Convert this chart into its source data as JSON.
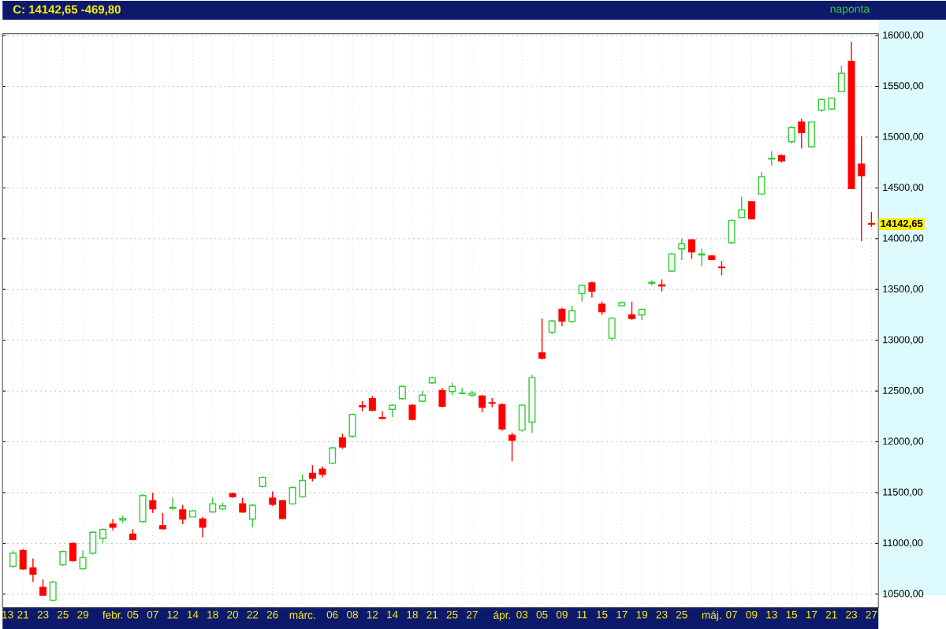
{
  "chart_data": {
    "type": "candlestick",
    "title": "C: 14142,65 -469,80",
    "subtitle": "naponta",
    "categories": [
      "13",
      "21",
      null,
      "23",
      null,
      "25",
      null,
      "29",
      null,
      null,
      "febr.",
      null,
      "05",
      null,
      "07",
      null,
      "12",
      null,
      "14",
      null,
      "18",
      null,
      "20",
      null,
      "22",
      null,
      "26",
      null,
      null,
      "márc.",
      null,
      null,
      "06",
      null,
      "08",
      null,
      "12",
      null,
      "14",
      null,
      "18",
      null,
      "21",
      null,
      "25",
      null,
      "27",
      null,
      null,
      "ápr.",
      null,
      "03",
      null,
      "05",
      null,
      "09",
      null,
      "11",
      null,
      "15",
      null,
      "17",
      null,
      "19",
      null,
      "23",
      null,
      "25",
      null,
      null,
      "máj.",
      null,
      "07",
      null,
      "09",
      null,
      "13",
      null,
      "15",
      null,
      "17",
      null,
      "21",
      null,
      "23",
      null,
      "27"
    ],
    "ohlc": [
      [
        10774,
        10930,
        10760,
        10904
      ],
      [
        10929,
        10945,
        10740,
        10749
      ],
      [
        10758,
        10851,
        10619,
        10696
      ],
      [
        10567,
        10645,
        10490,
        10490
      ],
      [
        10440,
        10630,
        10430,
        10620
      ],
      [
        10790,
        10930,
        10780,
        10920
      ],
      [
        11000,
        11010,
        10820,
        10830
      ],
      [
        10750,
        10930,
        10740,
        10860
      ],
      [
        10904,
        11120,
        10890,
        11110
      ],
      [
        11050,
        11150,
        11005,
        11137
      ],
      [
        11190,
        11240,
        11130,
        11160
      ],
      [
        11230,
        11270,
        11200,
        11245
      ],
      [
        11090,
        11140,
        11030,
        11040
      ],
      [
        11214,
        11490,
        11205,
        11470
      ],
      [
        11420,
        11500,
        11300,
        11340
      ],
      [
        11175,
        11300,
        11140,
        11145
      ],
      [
        11345,
        11450,
        11330,
        11355
      ],
      [
        11330,
        11380,
        11190,
        11240
      ],
      [
        11260,
        11330,
        11260,
        11320
      ],
      [
        11240,
        11260,
        11060,
        11160
      ],
      [
        11310,
        11450,
        11310,
        11390
      ],
      [
        11340,
        11400,
        11330,
        11370
      ],
      [
        11490,
        11500,
        11450,
        11460
      ],
      [
        11390,
        11450,
        11300,
        11310
      ],
      [
        11240,
        11390,
        11160,
        11375
      ],
      [
        11560,
        11660,
        11550,
        11650
      ],
      [
        11445,
        11512,
        11370,
        11385
      ],
      [
        11420,
        11430,
        11240,
        11245
      ],
      [
        11390,
        11560,
        11380,
        11550
      ],
      [
        11460,
        11680,
        11450,
        11620
      ],
      [
        11690,
        11770,
        11610,
        11640
      ],
      [
        11730,
        11760,
        11650,
        11680
      ],
      [
        11790,
        11950,
        11780,
        11940
      ],
      [
        12040,
        12080,
        11930,
        11950
      ],
      [
        12055,
        12280,
        12040,
        12270
      ],
      [
        12355,
        12400,
        12300,
        12345
      ],
      [
        12425,
        12450,
        12300,
        12310
      ],
      [
        12240,
        12300,
        12225,
        12230
      ],
      [
        12320,
        12370,
        12245,
        12360
      ],
      [
        12425,
        12555,
        12415,
        12545
      ],
      [
        12360,
        12370,
        12210,
        12220
      ],
      [
        12400,
        12500,
        12390,
        12460
      ],
      [
        12580,
        12640,
        12570,
        12630
      ],
      [
        12505,
        12530,
        12340,
        12350
      ],
      [
        12495,
        12580,
        12460,
        12545
      ],
      [
        12475,
        12530,
        12470,
        12480
      ],
      [
        12460,
        12500,
        12440,
        12480
      ],
      [
        12450,
        12460,
        12290,
        12340
      ],
      [
        12385,
        12430,
        12340,
        12380
      ],
      [
        12365,
        12380,
        12110,
        12127
      ],
      [
        12065,
        12090,
        11807,
        12015
      ],
      [
        12116,
        12370,
        12100,
        12360
      ],
      [
        12194,
        12660,
        12090,
        12632
      ],
      [
        12875,
        13216,
        12810,
        12825
      ],
      [
        13080,
        13200,
        13060,
        13190
      ],
      [
        13305,
        13320,
        13140,
        13190
      ],
      [
        13185,
        13340,
        13170,
        13290
      ],
      [
        13460,
        13550,
        13382,
        13540
      ],
      [
        13565,
        13580,
        13420,
        13485
      ],
      [
        13355,
        13380,
        13250,
        13280
      ],
      [
        13020,
        13230,
        13000,
        13216
      ],
      [
        13340,
        13380,
        13340,
        13370
      ],
      [
        13250,
        13380,
        13200,
        13215
      ],
      [
        13250,
        13310,
        13200,
        13305
      ],
      [
        13560,
        13590,
        13540,
        13570
      ],
      [
        13545,
        13600,
        13480,
        13535
      ],
      [
        13680,
        13860,
        13670,
        13850
      ],
      [
        13900,
        14000,
        13790,
        13950
      ],
      [
        13990,
        13990,
        13800,
        13870
      ],
      [
        13840,
        13900,
        13730,
        13850
      ],
      [
        13830,
        13840,
        13790,
        13795
      ],
      [
        13720,
        13780,
        13640,
        13715
      ],
      [
        13960,
        14190,
        13950,
        14180
      ],
      [
        14208,
        14414,
        14200,
        14285
      ],
      [
        14363,
        14370,
        14190,
        14197
      ],
      [
        14440,
        14660,
        14430,
        14610
      ],
      [
        14785,
        14860,
        14720,
        14792
      ],
      [
        14817,
        14830,
        14750,
        14766
      ],
      [
        14955,
        15111,
        14940,
        15095
      ],
      [
        15148,
        15180,
        14890,
        15044
      ],
      [
        14905,
        15150,
        14895,
        15148
      ],
      [
        15266,
        15380,
        15250,
        15370
      ],
      [
        15277,
        15390,
        15265,
        15385
      ],
      [
        15447,
        15705,
        15440,
        15628
      ],
      [
        15746,
        15938,
        14487,
        14492
      ],
      [
        14734,
        15009,
        13975,
        14621
      ],
      [
        14150,
        14262,
        14115,
        14142.65
      ]
    ],
    "ylim": [
      10370,
      16020
    ],
    "yticks": [
      {
        "value": 10500,
        "label": "10500,00"
      },
      {
        "value": 11000,
        "label": "11000,00"
      },
      {
        "value": 11500,
        "label": "11500,00"
      },
      {
        "value": 12000,
        "label": "12000,00"
      },
      {
        "value": 12500,
        "label": "12500,00"
      },
      {
        "value": 13000,
        "label": "13000,00"
      },
      {
        "value": 13500,
        "label": "13500,00"
      },
      {
        "value": 14000,
        "label": "14000,00"
      },
      {
        "value": 14500,
        "label": "14500,00"
      },
      {
        "value": 15000,
        "label": "15000,00"
      },
      {
        "value": 15500,
        "label": "15500,00"
      },
      {
        "value": 16000,
        "label": "16000,00"
      }
    ],
    "grid": true,
    "annotations": [
      "14142,65"
    ]
  }
}
